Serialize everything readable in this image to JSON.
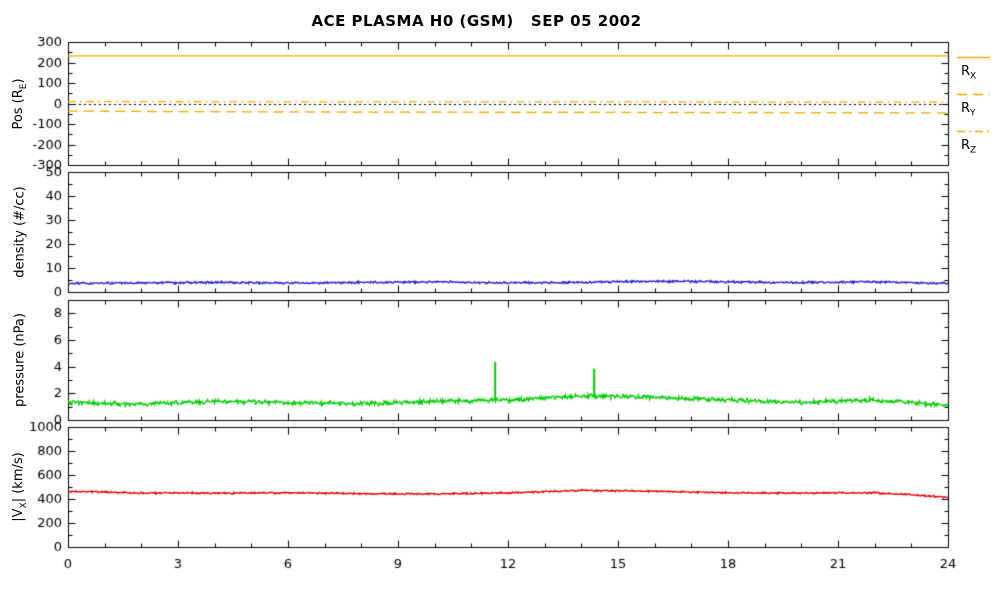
{
  "title": "ACE PLASMA H0 (GSM)   SEP 05 2002",
  "x_axis": {
    "min": 0,
    "max": 24,
    "major_ticks": [
      0,
      3,
      6,
      9,
      12,
      15,
      18,
      21,
      24
    ],
    "minor_step": 1
  },
  "colors": {
    "orange": "#f5a800",
    "blue": "#2222cc",
    "green": "#00cc00",
    "red": "#dd0000",
    "axis": "#000000"
  },
  "legend": {
    "items": [
      {
        "base": "R",
        "sub": "X",
        "style": "solid",
        "color": "#f5a800"
      },
      {
        "base": "R",
        "sub": "Y",
        "style": "dashed",
        "color": "#f5a800"
      },
      {
        "base": "R",
        "sub": "Z",
        "style": "dashdot",
        "color": "#f5a800"
      }
    ]
  },
  "chart_data": [
    {
      "type": "line",
      "panel": "position",
      "ylabel_parts": {
        "pre": "Pos (R",
        "sub": "E",
        "post": ")"
      },
      "ylim": [
        -300,
        300
      ],
      "yticks": [
        -300,
        -200,
        -100,
        0,
        100,
        200,
        300
      ],
      "zero_line": true,
      "series": [
        {
          "name": "R_X",
          "style": "solid",
          "color": "#f5a800",
          "noise": 0,
          "trend": [
            232,
            232,
            232,
            232,
            232,
            232,
            232,
            232,
            232,
            232,
            232,
            232,
            232
          ]
        },
        {
          "name": "R_Y",
          "style": "dashed",
          "color": "#f5a800",
          "noise": 1,
          "trend": [
            -37,
            -39,
            -40,
            -41,
            -42,
            -42,
            -43,
            -43,
            -44,
            -44,
            -45,
            -45,
            -46
          ]
        },
        {
          "name": "R_Z",
          "style": "dashdot",
          "color": "#f5a800",
          "noise": 0.5,
          "trend": [
            9,
            9,
            8,
            8,
            8,
            8,
            8,
            8,
            8,
            7,
            7,
            7,
            7
          ]
        }
      ]
    },
    {
      "type": "line",
      "panel": "density",
      "ylabel_parts": {
        "pre": "density (#/cc)",
        "sub": "",
        "post": ""
      },
      "ylim": [
        0,
        50
      ],
      "yticks": [
        0,
        10,
        20,
        30,
        40,
        50
      ],
      "series": [
        {
          "name": "density",
          "style": "solid",
          "color": "#2222cc",
          "noise": 0.55,
          "trend": [
            3.5,
            3.8,
            4.0,
            3.7,
            4.0,
            4.2,
            3.8,
            4.0,
            4.5,
            4.2,
            3.9,
            4.3,
            3.6
          ]
        }
      ]
    },
    {
      "type": "line",
      "panel": "pressure",
      "ylabel_parts": {
        "pre": "pressure (nPa)",
        "sub": "",
        "post": ""
      },
      "ylim": [
        0,
        9
      ],
      "yticks": [
        0,
        2,
        4,
        6,
        8
      ],
      "series": [
        {
          "name": "pressure",
          "style": "solid",
          "color": "#00cc00",
          "noise": 0.2,
          "trend": [
            1.3,
            1.2,
            1.4,
            1.3,
            1.2,
            1.4,
            1.5,
            1.8,
            1.7,
            1.5,
            1.3,
            1.5,
            1.1
          ],
          "spikes": [
            {
              "x": 11.65,
              "y": 4.35
            },
            {
              "x": 14.35,
              "y": 3.85
            }
          ]
        }
      ]
    },
    {
      "type": "line",
      "panel": "vx",
      "ylabel_parts": {
        "pre": "|V",
        "sub": "X",
        "post": "| (km/s)"
      },
      "ylim": [
        0,
        1000
      ],
      "yticks": [
        0,
        200,
        400,
        600,
        800,
        1000
      ],
      "series": [
        {
          "name": "vx",
          "style": "solid",
          "color": "#dd0000",
          "noise": 9,
          "trend": [
            465,
            450,
            448,
            452,
            445,
            442,
            450,
            472,
            465,
            452,
            448,
            452,
            415
          ]
        }
      ]
    }
  ]
}
